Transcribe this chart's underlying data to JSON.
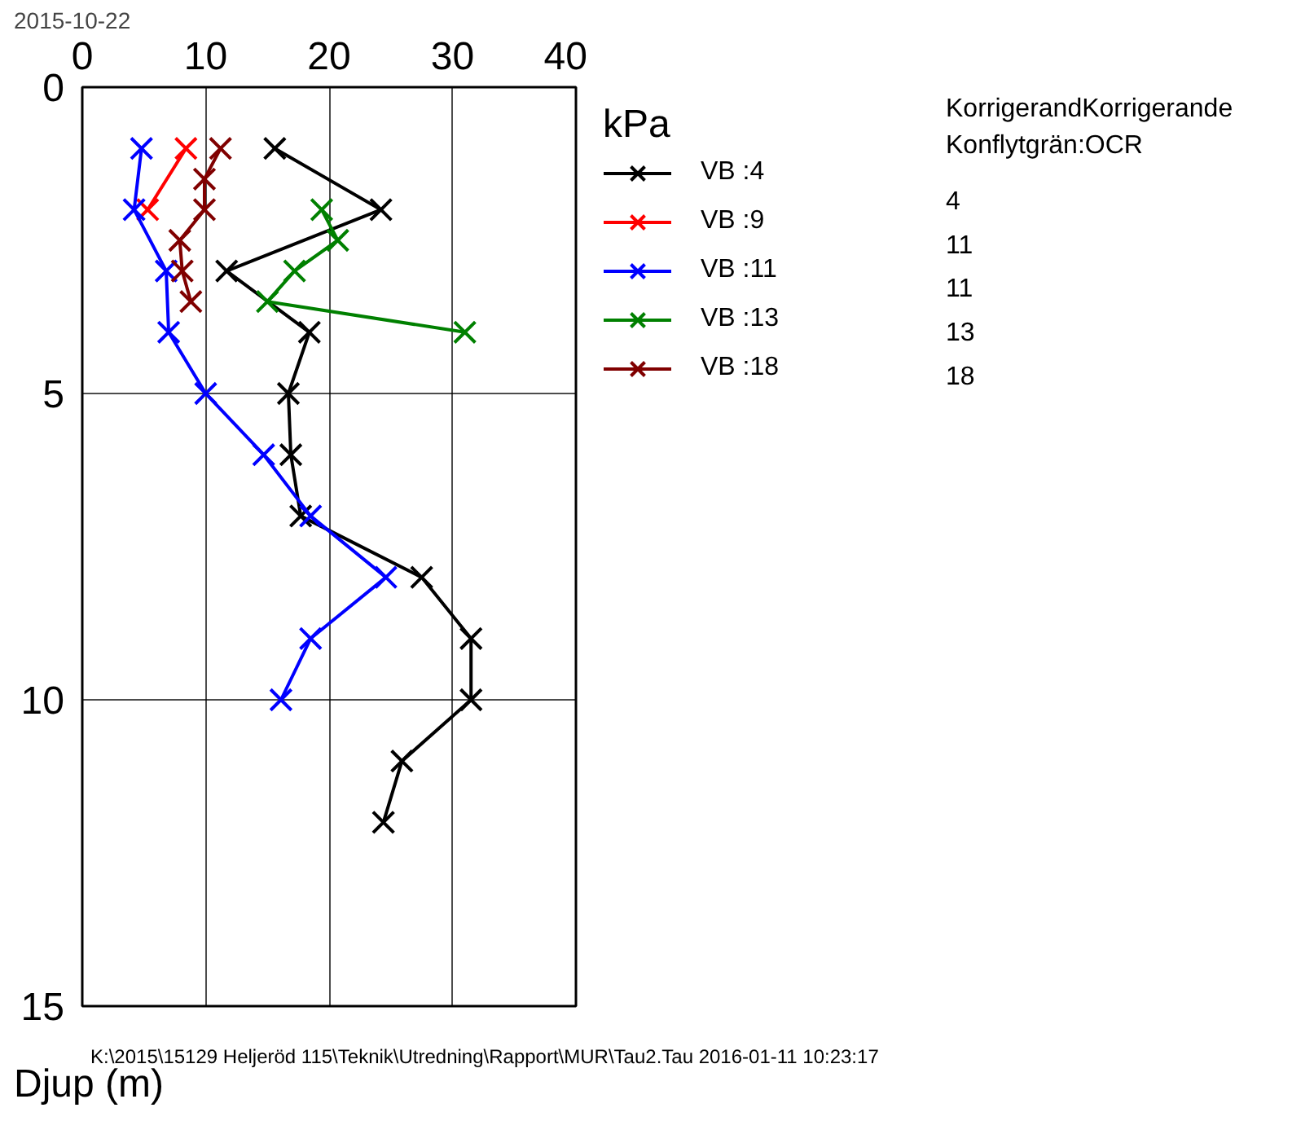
{
  "chart_data": {
    "type": "line",
    "xlabel": "kPa",
    "ylabel": "Djup (m)",
    "xlim": [
      0,
      40
    ],
    "xticks": [
      0,
      10,
      20,
      30,
      40
    ],
    "ylim": [
      15,
      0
    ],
    "yticks": [
      0,
      5,
      10,
      15
    ],
    "grid": true,
    "legend": "right",
    "marker": "cross",
    "line_style": "solid",
    "series": [
      {
        "name": "VB :4",
        "color": "#000000",
        "x": [
          15.6,
          24.2,
          11.7,
          18.4,
          16.7,
          16.9,
          17.7,
          27.5,
          31.5,
          31.5,
          25.9,
          24.4
        ],
        "values": [
          1,
          2,
          3,
          4,
          5,
          6,
          7,
          8,
          9,
          10,
          11,
          12
        ]
      },
      {
        "name": "VB :9",
        "color": "#ff0000",
        "x": [
          8.4,
          5.3
        ],
        "values": [
          1,
          2
        ]
      },
      {
        "name": "VB :11",
        "color": "#0000ff",
        "x": [
          4.8,
          4.2,
          6.8,
          7.0,
          10.0,
          14.7,
          18.5,
          24.6,
          18.5,
          16.1
        ],
        "values": [
          1,
          2,
          3,
          4,
          5,
          6,
          7,
          8,
          9,
          10
        ]
      },
      {
        "name": "VB :13",
        "color": "#008000",
        "x": [
          19.4,
          20.7,
          17.2,
          15.0,
          31.0
        ],
        "values": [
          2,
          2.5,
          3,
          3.5,
          4
        ]
      },
      {
        "name": "VB :18",
        "color": "#800000",
        "x": [
          11.2,
          9.9,
          9.9,
          7.9,
          8.1,
          8.8
        ],
        "values": [
          1,
          1.5,
          2,
          2.5,
          3,
          3.5
        ]
      }
    ],
    "annotations": [
      "2015-10-22",
      "KorrigerandKorrigerande",
      "Konflytgrän:OCR",
      "4",
      "11",
      "11",
      "13",
      "18",
      "K:\\2015\\15129 Heljeröd 115\\Teknik\\Utredning\\Rapport\\MUR\\Tau2.Tau  2016-01-11 10:23:17"
    ]
  }
}
